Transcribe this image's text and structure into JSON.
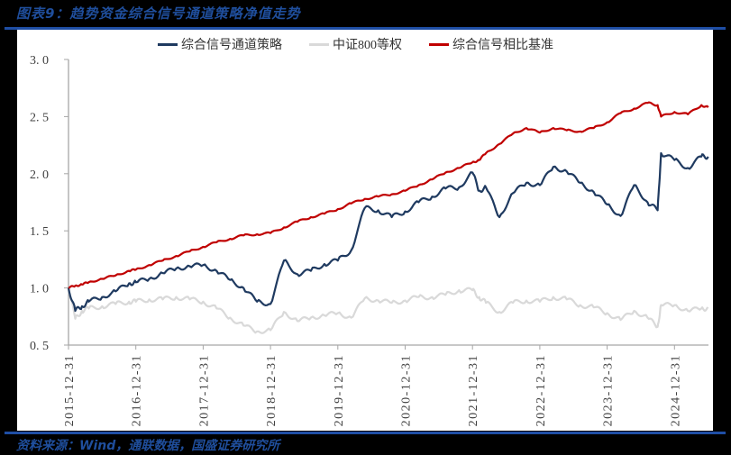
{
  "title": "图表9：趋势资金综合信号通道策略净值走势",
  "source": "资料来源：Wind，通联数据，国盛证券研究所",
  "colors": {
    "accent_blue": "#1f4ea5",
    "strategy": "#1f3a60",
    "benchmark_index": "#d9d9d9",
    "relative_benchmark": "#c00000"
  },
  "chart_data": {
    "type": "line",
    "title": "趋势资金综合信号通道策略净值走势",
    "xlabel": "",
    "ylabel": "",
    "ylim": [
      0.5,
      3.0
    ],
    "yticks": [
      "3.0",
      "2.5",
      "2.0",
      "1.5",
      "1.0",
      "0.5"
    ],
    "xtick_labels": [
      "2015-12-31",
      "2016-12-31",
      "2017-12-31",
      "2018-12-31",
      "2019-12-31",
      "2020-12-31",
      "2021-12-31",
      "2022-12-31",
      "2023-12-31",
      "2024-12-31"
    ],
    "grid": false,
    "legend_position": "top",
    "x": [
      0.0,
      0.1,
      0.2,
      0.3,
      0.5,
      0.7,
      0.9,
      1.0,
      1.2,
      1.4,
      1.6,
      1.8,
      2.0,
      2.2,
      2.4,
      2.6,
      2.8,
      3.0,
      3.2,
      3.4,
      3.6,
      3.8,
      4.0,
      4.2,
      4.4,
      4.6,
      4.8,
      5.0,
      5.2,
      5.4,
      5.6,
      5.8,
      6.0,
      6.1,
      6.2,
      6.4,
      6.6,
      6.8,
      7.0,
      7.2,
      7.4,
      7.6,
      7.8,
      8.0,
      8.2,
      8.4,
      8.6,
      8.75,
      8.8,
      9.0,
      9.2,
      9.4,
      9.5
    ],
    "series": [
      {
        "name": "综合信号通道策略",
        "color": "#1f3a60",
        "values": [
          1.0,
          0.8,
          0.84,
          0.88,
          0.92,
          0.97,
          1.04,
          1.05,
          1.08,
          1.13,
          1.17,
          1.19,
          1.2,
          1.15,
          1.07,
          1.0,
          0.88,
          0.86,
          1.24,
          1.12,
          1.15,
          1.21,
          1.24,
          1.33,
          1.7,
          1.68,
          1.62,
          1.67,
          1.75,
          1.8,
          1.87,
          1.88,
          2.01,
          1.85,
          1.88,
          1.62,
          1.83,
          1.92,
          1.9,
          2.06,
          2.02,
          1.92,
          1.84,
          1.73,
          1.63,
          1.9,
          1.75,
          1.68,
          2.18,
          2.12,
          2.05,
          2.15,
          2.15
        ]
      },
      {
        "name": "中证800等权",
        "color": "#d9d9d9",
        "values": [
          1.0,
          0.73,
          0.8,
          0.82,
          0.84,
          0.86,
          0.88,
          0.88,
          0.9,
          0.9,
          0.92,
          0.9,
          0.88,
          0.82,
          0.74,
          0.67,
          0.62,
          0.63,
          0.79,
          0.71,
          0.74,
          0.76,
          0.78,
          0.74,
          0.91,
          0.89,
          0.87,
          0.89,
          0.92,
          0.92,
          0.94,
          0.98,
          0.98,
          0.92,
          0.87,
          0.79,
          0.87,
          0.89,
          0.88,
          0.92,
          0.9,
          0.85,
          0.83,
          0.78,
          0.72,
          0.8,
          0.74,
          0.66,
          0.85,
          0.85,
          0.8,
          0.82,
          0.82
        ]
      },
      {
        "name": "综合信号相比基准",
        "color": "#c00000",
        "values": [
          1.0,
          1.02,
          1.03,
          1.05,
          1.08,
          1.11,
          1.15,
          1.16,
          1.2,
          1.24,
          1.28,
          1.32,
          1.36,
          1.4,
          1.43,
          1.46,
          1.47,
          1.48,
          1.53,
          1.58,
          1.62,
          1.65,
          1.69,
          1.74,
          1.78,
          1.8,
          1.82,
          1.85,
          1.9,
          1.95,
          2.01,
          2.05,
          2.1,
          2.12,
          2.18,
          2.26,
          2.35,
          2.4,
          2.36,
          2.4,
          2.38,
          2.37,
          2.4,
          2.45,
          2.53,
          2.57,
          2.62,
          2.6,
          2.5,
          2.54,
          2.52,
          2.6,
          2.58
        ]
      }
    ]
  }
}
